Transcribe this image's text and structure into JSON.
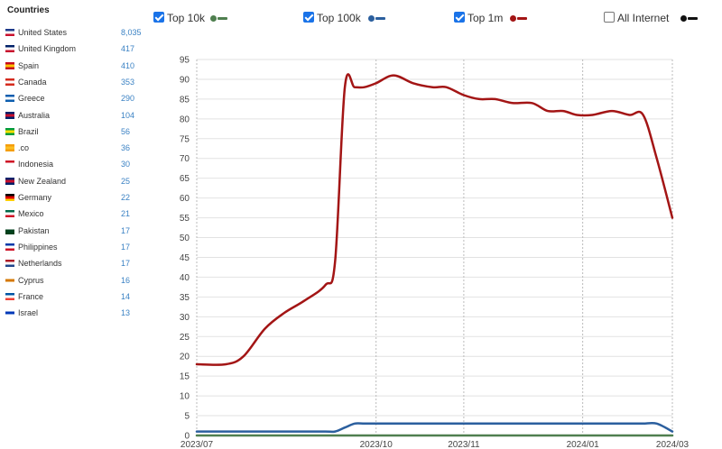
{
  "sidebar": {
    "title": "Countries",
    "countries": [
      {
        "name": "United States",
        "count": "8,035",
        "flag": [
          "#1e3a8a",
          "#ffffff",
          "#c8102e"
        ]
      },
      {
        "name": "United Kingdom",
        "count": "417",
        "flag": [
          "#012169",
          "#ffffff",
          "#c8102e"
        ]
      },
      {
        "name": "Spain",
        "count": "410",
        "flag": [
          "#c60b1e",
          "#ffc400",
          "#c60b1e"
        ]
      },
      {
        "name": "Canada",
        "count": "353",
        "flag": [
          "#d52b1e",
          "#ffffff",
          "#d52b1e"
        ]
      },
      {
        "name": "Greece",
        "count": "290",
        "flag": [
          "#0d5eaf",
          "#ffffff",
          "#0d5eaf"
        ]
      },
      {
        "name": "Australia",
        "count": "104",
        "flag": [
          "#012169",
          "#c8102e",
          "#012169"
        ]
      },
      {
        "name": "Brazil",
        "count": "56",
        "flag": [
          "#009c3b",
          "#ffdf00",
          "#009c3b"
        ]
      },
      {
        "name": ".co",
        "count": "36",
        "flag": [
          "#f59e0b",
          "#fbbf24",
          "#f59e0b"
        ]
      },
      {
        "name": "Indonesia",
        "count": "30",
        "flag": [
          "#ce1126",
          "#ffffff",
          "#ffffff"
        ]
      },
      {
        "name": "New Zealand",
        "count": "25",
        "flag": [
          "#012169",
          "#c8102e",
          "#012169"
        ]
      },
      {
        "name": "Germany",
        "count": "22",
        "flag": [
          "#000000",
          "#dd0000",
          "#ffce00"
        ]
      },
      {
        "name": "Mexico",
        "count": "21",
        "flag": [
          "#006847",
          "#ffffff",
          "#ce1126"
        ]
      },
      {
        "name": "Pakistan",
        "count": "17",
        "flag": [
          "#ffffff",
          "#01411c",
          "#01411c"
        ]
      },
      {
        "name": "Philippines",
        "count": "17",
        "flag": [
          "#0038a8",
          "#ffffff",
          "#ce1126"
        ]
      },
      {
        "name": "Netherlands",
        "count": "17",
        "flag": [
          "#ae1c28",
          "#ffffff",
          "#21468b"
        ]
      },
      {
        "name": "Cyprus",
        "count": "16",
        "flag": [
          "#ffffff",
          "#d57800",
          "#ffffff"
        ]
      },
      {
        "name": "France",
        "count": "14",
        "flag": [
          "#0055a4",
          "#ffffff",
          "#ef4135"
        ]
      },
      {
        "name": "Israel",
        "count": "13",
        "flag": [
          "#ffffff",
          "#0038b8",
          "#ffffff"
        ]
      }
    ]
  },
  "legend": [
    {
      "label": "Top 10k",
      "checked": true,
      "color": "#4f7f4f"
    },
    {
      "label": "Top 100k",
      "checked": true,
      "color": "#2b5f9e"
    },
    {
      "label": "Top 1m",
      "checked": true,
      "color": "#a31515"
    },
    {
      "label": "All Internet",
      "checked": false,
      "color": "#111111"
    }
  ],
  "chart_data": {
    "type": "line",
    "x_tick_labels": [
      "2023/07",
      "2023/10",
      "2023/11",
      "2024/01",
      "2024/03"
    ],
    "ylim": [
      0,
      95
    ],
    "y_ticks": [
      0,
      5,
      10,
      15,
      20,
      25,
      30,
      35,
      40,
      45,
      50,
      55,
      60,
      65,
      70,
      75,
      80,
      85,
      90,
      95
    ],
    "grid": true,
    "x": [
      "2023-07-01",
      "2023-07-16",
      "2023-07-25",
      "2023-08-05",
      "2023-08-15",
      "2023-08-25",
      "2023-09-05",
      "2023-09-10",
      "2023-09-15",
      "2023-09-20",
      "2023-09-25",
      "2023-10-01",
      "2023-10-10",
      "2023-10-20",
      "2023-10-30",
      "2023-11-06",
      "2023-11-15",
      "2023-11-23",
      "2023-12-01",
      "2023-12-10",
      "2023-12-20",
      "2023-12-28",
      "2024-01-05",
      "2024-01-12",
      "2024-01-20",
      "2024-01-30",
      "2024-02-08",
      "2024-02-15",
      "2024-02-22",
      "2024-03-01"
    ],
    "series": [
      {
        "name": "Top 10k",
        "color": "#4f7f4f",
        "values": [
          0,
          0,
          0,
          0,
          0,
          0,
          0,
          0,
          0,
          0,
          0,
          0,
          0,
          0,
          0,
          0,
          0,
          0,
          0,
          0,
          0,
          0,
          0,
          0,
          0,
          0,
          0,
          0,
          0,
          0
        ]
      },
      {
        "name": "Top 100k",
        "color": "#2b5f9e",
        "values": [
          1,
          1,
          1,
          1,
          1,
          1,
          1,
          1,
          2,
          3,
          3,
          3,
          3,
          3,
          3,
          3,
          3,
          3,
          3,
          3,
          3,
          3,
          3,
          3,
          3,
          3,
          3,
          3,
          3,
          1
        ]
      },
      {
        "name": "Top 1m",
        "color": "#a31515",
        "values": [
          18,
          18,
          20,
          27,
          31,
          34,
          38,
          44,
          88,
          88,
          88,
          89,
          91,
          89,
          88,
          88,
          86,
          85,
          85,
          84,
          84,
          82,
          82,
          81,
          81,
          82,
          81,
          81,
          70,
          55
        ]
      }
    ]
  }
}
